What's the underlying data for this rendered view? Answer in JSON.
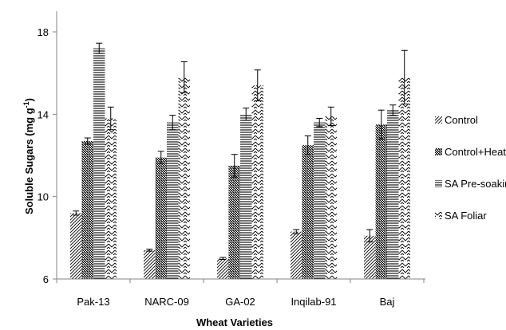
{
  "chart_data": {
    "type": "bar",
    "title": "",
    "xlabel": "Wheat Varieties",
    "ylabel": "Soluble Sugars  (mg g",
    "ylabel_sup": "-1",
    "ylabel_close": ")",
    "ylim": [
      6,
      19.2
    ],
    "yticks": [
      6,
      10,
      14,
      18
    ],
    "grid": false,
    "legend_position": "right",
    "categories": [
      "Pak-13",
      "NARC-09",
      "GA-02",
      "Inqilab-91",
      "Baj"
    ],
    "series": [
      {
        "name": "Control",
        "pattern": "diag-fine",
        "values": [
          9.2,
          7.4,
          7.0,
          8.3,
          8.1
        ],
        "errors": [
          0.1,
          0.05,
          0.05,
          0.1,
          0.3
        ]
      },
      {
        "name": "Control+Heat",
        "pattern": "diag-dense",
        "values": [
          12.7,
          11.9,
          11.5,
          12.5,
          13.5
        ],
        "errors": [
          0.15,
          0.3,
          0.55,
          0.45,
          0.7
        ]
      },
      {
        "name": "SA Pre-soaking",
        "pattern": "horizontal",
        "values": [
          17.2,
          13.6,
          14.0,
          13.6,
          14.2
        ],
        "errors": [
          0.25,
          0.35,
          0.3,
          0.2,
          0.25
        ]
      },
      {
        "name": "SA Foliar",
        "pattern": "zigzag",
        "values": [
          13.8,
          15.8,
          15.4,
          13.9,
          15.8
        ],
        "errors": [
          0.55,
          0.75,
          0.75,
          0.45,
          1.3
        ]
      }
    ]
  }
}
